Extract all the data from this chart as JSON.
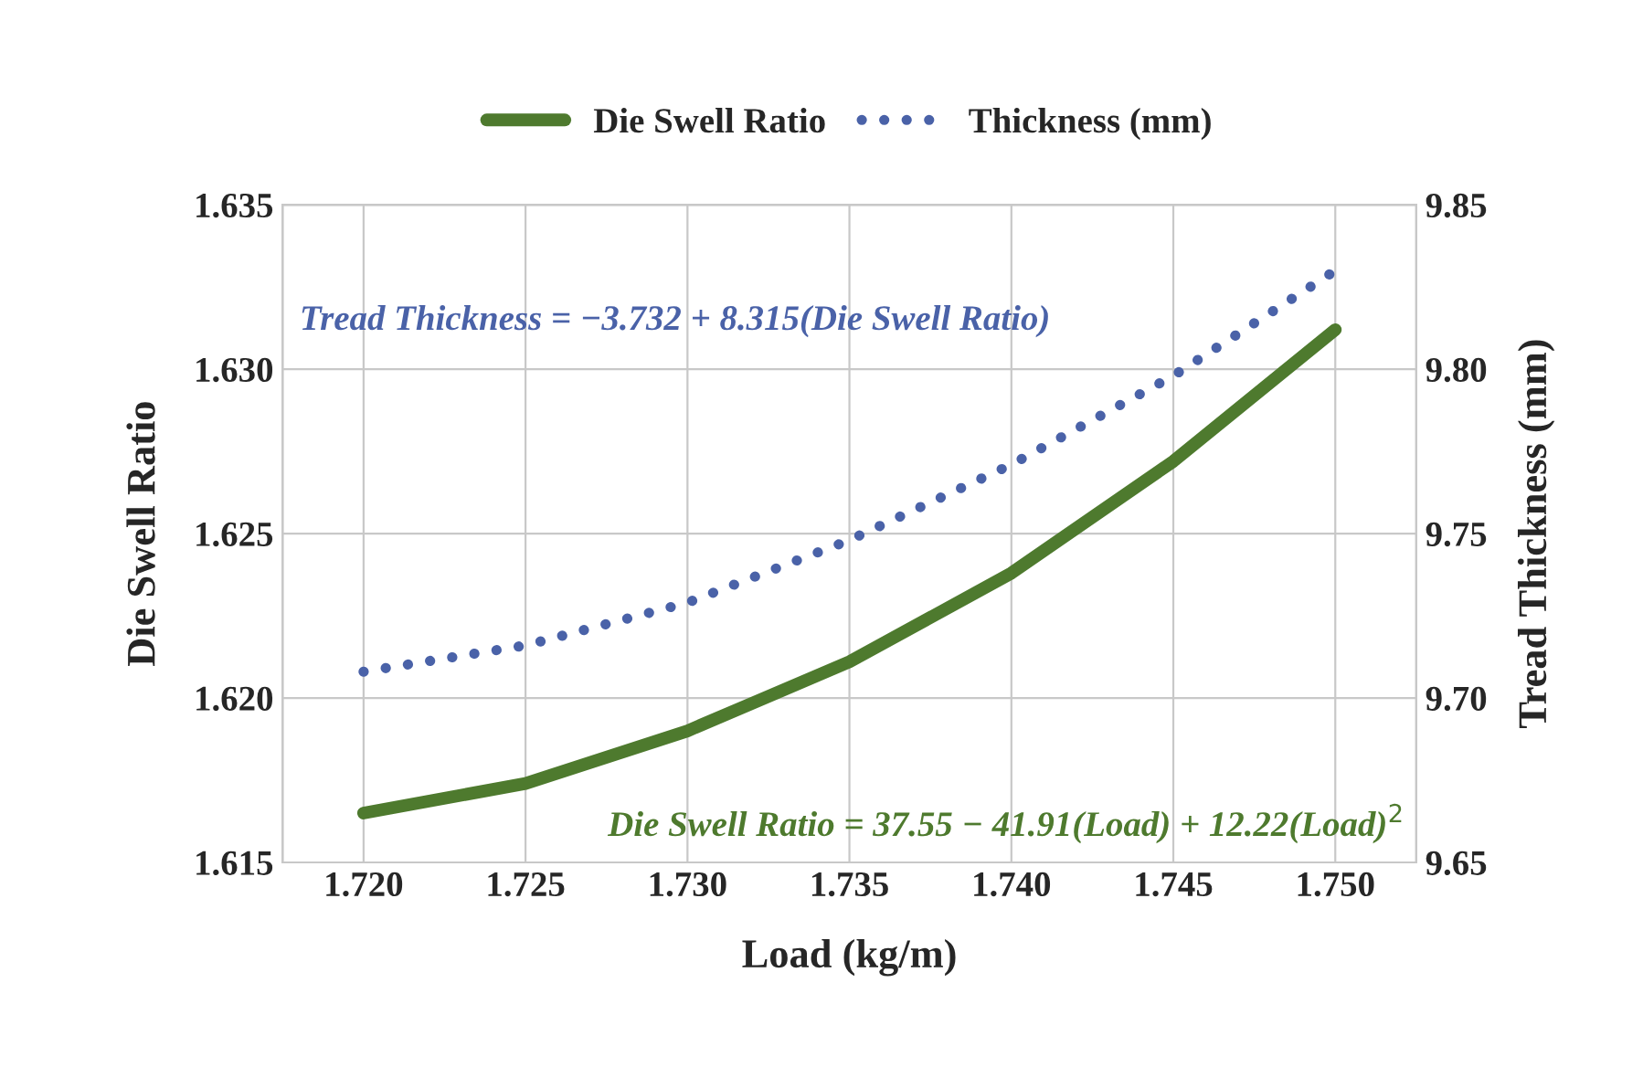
{
  "chart_data": {
    "type": "line",
    "xlabel": "Load (kg/m)",
    "ylabel": "Die Swell Ratio",
    "y2label": "Tread Thickness (mm)",
    "x": [
      1.72,
      1.725,
      1.73,
      1.735,
      1.74,
      1.745,
      1.75
    ],
    "series": [
      {
        "name": "Die Swell Ratio",
        "color": "#4e7a2e",
        "line_style": "solid",
        "values": [
          1.6165,
          1.6174,
          1.619,
          1.6211,
          1.6238,
          1.6272,
          1.6312
        ]
      },
      {
        "name": "Thickness (mm)",
        "color": "#4a62a8",
        "line_style": "dotted",
        "axis": "y2",
        "values": [
          9.708,
          9.716,
          9.729,
          9.748,
          9.771,
          9.798,
          9.83
        ]
      }
    ],
    "xlim": [
      1.7175,
      1.7525
    ],
    "xticks": [
      {
        "value": 1.72,
        "label": "1.720"
      },
      {
        "value": 1.725,
        "label": "1.725"
      },
      {
        "value": 1.73,
        "label": "1.730"
      },
      {
        "value": 1.735,
        "label": "1.735"
      },
      {
        "value": 1.74,
        "label": "1.740"
      },
      {
        "value": 1.745,
        "label": "1.745"
      },
      {
        "value": 1.75,
        "label": "1.750"
      }
    ],
    "ylim": [
      1.615,
      1.635
    ],
    "yticks": [
      {
        "value": 1.615,
        "label": "1.615"
      },
      {
        "value": 1.62,
        "label": "1.620"
      },
      {
        "value": 1.625,
        "label": "1.625"
      },
      {
        "value": 1.63,
        "label": "1.630"
      },
      {
        "value": 1.635,
        "label": "1.635"
      }
    ],
    "y2lim": [
      9.65,
      9.85
    ],
    "y2ticks": [
      {
        "value": 9.65,
        "label": "9.65"
      },
      {
        "value": 9.7,
        "label": "9.70"
      },
      {
        "value": 9.75,
        "label": "9.75"
      },
      {
        "value": 9.8,
        "label": "9.80"
      },
      {
        "value": 9.85,
        "label": "9.85"
      }
    ],
    "annotations": [
      "Tread Thickness = −3.732 + 8.315(Die Swell Ratio)",
      "Die Swell Ratio = 37.55 − 41.91(Load) + 12.22(Load)$^{2}$"
    ],
    "grid": true,
    "legend": "top",
    "marker": "none"
  }
}
